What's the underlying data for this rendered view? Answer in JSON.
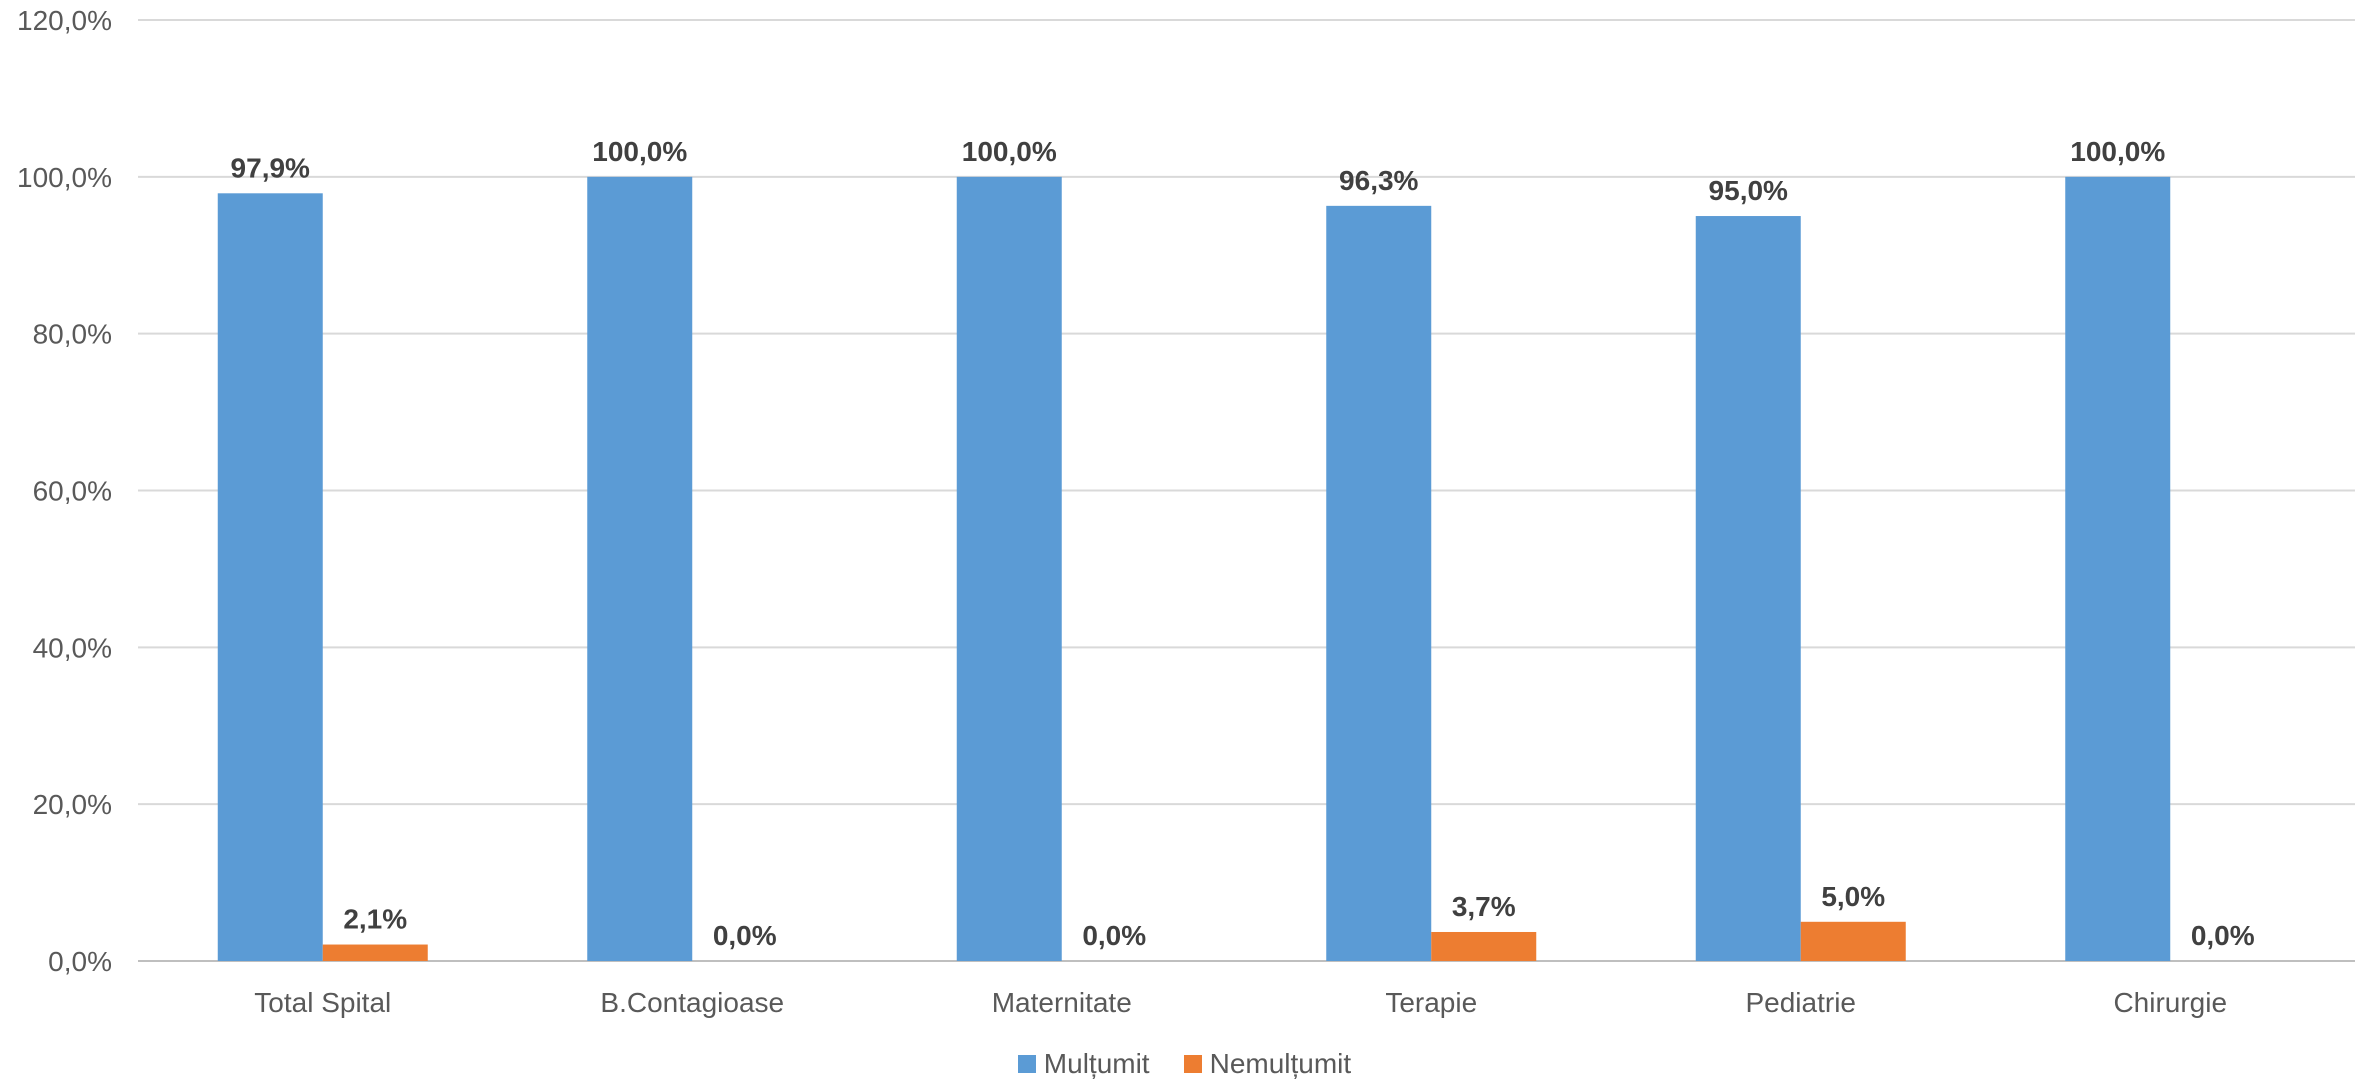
{
  "chart_data": {
    "type": "bar",
    "categories": [
      "Total Spital",
      "B.Contagioase",
      "Maternitate",
      "Terapie",
      "Pediatrie",
      "Chirurgie"
    ],
    "series": [
      {
        "name": "Mulțumit",
        "color": "#5B9BD5",
        "values": [
          97.9,
          100.0,
          100.0,
          96.3,
          95.0,
          100.0
        ],
        "labels": [
          "97,9%",
          "100,0%",
          "100,0%",
          "96,3%",
          "95,0%",
          "100,0%"
        ]
      },
      {
        "name": "Nemulțumit",
        "color": "#ED7D31",
        "values": [
          2.1,
          0.0,
          0.0,
          3.7,
          5.0,
          0.0
        ],
        "labels": [
          "2,1%",
          "0,0%",
          "0,0%",
          "3,7%",
          "5,0%",
          "0,0%"
        ]
      }
    ],
    "ylim": [
      0,
      120
    ],
    "yticks": [
      0,
      20,
      40,
      60,
      80,
      100,
      120
    ],
    "ytick_labels": [
      "0,0%",
      "20,0%",
      "40,0%",
      "60,0%",
      "80,0%",
      "100,0%",
      "120,0%"
    ],
    "grid": true,
    "legend_position": "bottom"
  }
}
